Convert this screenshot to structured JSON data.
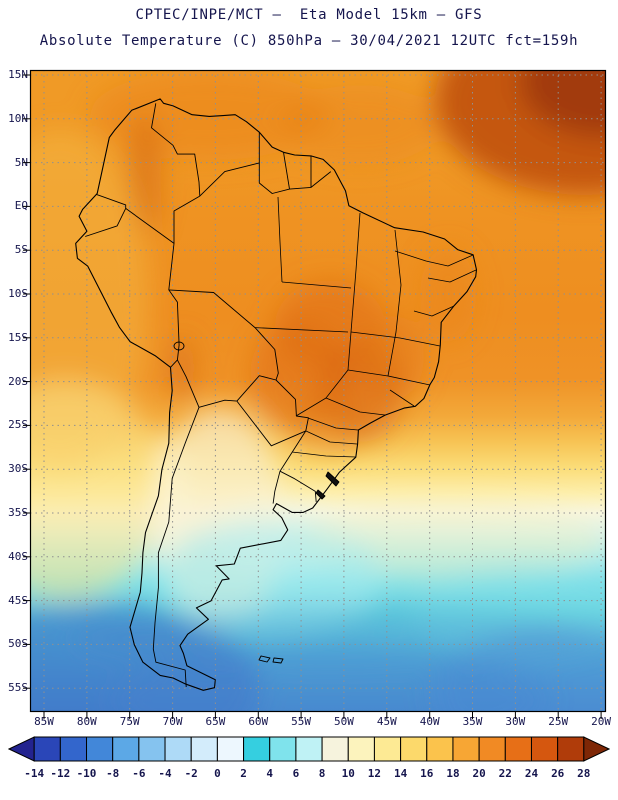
{
  "header": {
    "title_line1": "CPTEC/INPE/MCT —  Eta Model 15km — GFS",
    "title_line2": "Absolute Temperature (C) 850hPa — 30/04/2021 12UTC fct=159h"
  },
  "map": {
    "lat_labels": [
      "15N",
      "10N",
      "5N",
      "EQ",
      "5S",
      "10S",
      "15S",
      "20S",
      "25S",
      "30S",
      "35S",
      "40S",
      "45S",
      "50S",
      "55S"
    ],
    "lon_labels": [
      "85W",
      "80W",
      "75W",
      "70W",
      "65W",
      "60W",
      "55W",
      "50W",
      "45W",
      "40W",
      "35W",
      "30W",
      "25W",
      "20W"
    ]
  },
  "colorbar": {
    "labels": [
      "-14",
      "-12",
      "-10",
      "-8",
      "-6",
      "-4",
      "-2",
      "0",
      "2",
      "4",
      "6",
      "8",
      "10",
      "12",
      "14",
      "16",
      "18",
      "20",
      "22",
      "24",
      "26",
      "28"
    ],
    "colors": [
      "#23238f",
      "#2a46b8",
      "#3366cc",
      "#4287d9",
      "#5ca8e6",
      "#85c3ef",
      "#aedaf7",
      "#d3ecfb",
      "#edf7fe",
      "#35cfe0",
      "#7fe3ec",
      "#bff2f5",
      "#f6f3dd",
      "#fcf3bd",
      "#fdea94",
      "#fcd96b",
      "#fbc34c",
      "#f7a634",
      "#f18a24",
      "#e76f17",
      "#d5570f",
      "#b03c0a",
      "#7e2706"
    ]
  },
  "theme": {
    "text_color": "#15154d",
    "grid_color": "#909090",
    "frame_color": "#000000"
  }
}
